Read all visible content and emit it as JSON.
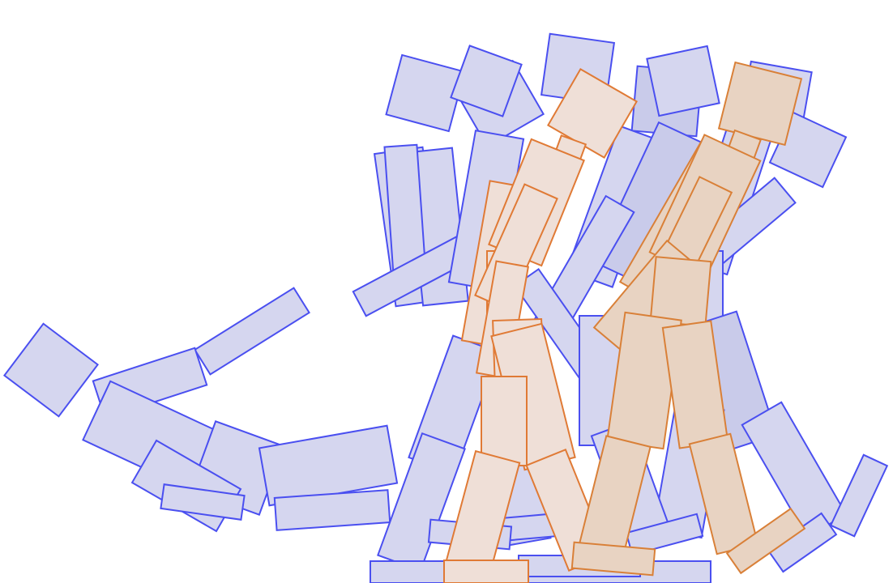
{
  "scene": {
    "description_visible_text": "",
    "colors": {
      "background": "#ffffff",
      "ghost_fill": "#d5d6ef",
      "ghost_stroke": "#4a4ff0",
      "figure_fill": "#efdfd7",
      "figure_stroke": "#e07a35"
    },
    "layers": [
      "ghost-poses",
      "current-figures"
    ]
  }
}
